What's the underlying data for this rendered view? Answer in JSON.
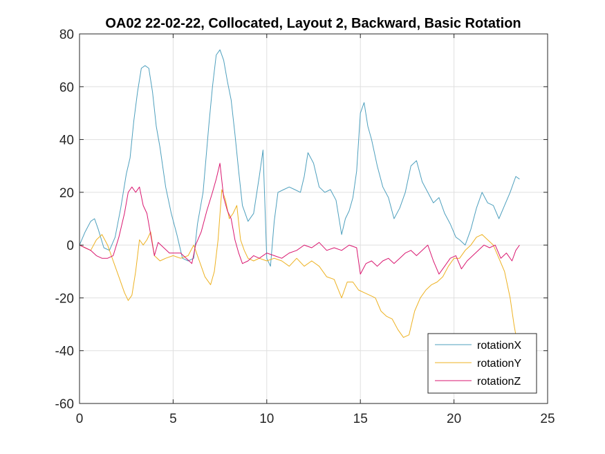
{
  "chart_data": {
    "type": "line",
    "title": "OA02 22-02-22, Collocated, Layout 2, Backward, Basic Rotation",
    "xlabel": "",
    "ylabel": "",
    "xlim": [
      0,
      25
    ],
    "ylim": [
      -60,
      80
    ],
    "xticks": [
      0,
      5,
      10,
      15,
      20,
      25
    ],
    "yticks": [
      -60,
      -40,
      -20,
      0,
      20,
      40,
      60,
      80
    ],
    "x_tick_labels": [
      "0",
      "5",
      "10",
      "15",
      "20",
      "25"
    ],
    "y_tick_labels": [
      "-60",
      "-40",
      "-20",
      "0",
      "20",
      "40",
      "60",
      "80"
    ],
    "grid": true,
    "legend_position": "bottom-right",
    "series": [
      {
        "name": "rotationX",
        "color": "#4d9fbd",
        "x": [
          0,
          0.3,
          0.6,
          0.8,
          1.0,
          1.3,
          1.6,
          1.9,
          2.2,
          2.5,
          2.7,
          2.9,
          3.1,
          3.3,
          3.5,
          3.7,
          3.9,
          4.1,
          4.3,
          4.6,
          4.9,
          5.2,
          5.5,
          5.8,
          6.1,
          6.3,
          6.6,
          6.9,
          7.1,
          7.3,
          7.5,
          7.7,
          7.9,
          8.1,
          8.3,
          8.5,
          8.7,
          9.0,
          9.3,
          9.6,
          9.8,
          10.0,
          10.2,
          10.4,
          10.6,
          10.9,
          11.2,
          11.5,
          11.8,
          12.0,
          12.2,
          12.5,
          12.8,
          13.1,
          13.4,
          13.7,
          14.0,
          14.2,
          14.4,
          14.6,
          14.8,
          15.0,
          15.2,
          15.4,
          15.6,
          15.9,
          16.2,
          16.5,
          16.8,
          17.1,
          17.4,
          17.7,
          18.0,
          18.3,
          18.6,
          18.9,
          19.2,
          19.5,
          19.8,
          20.1,
          20.3,
          20.6,
          20.9,
          21.2,
          21.5,
          21.8,
          22.1,
          22.4,
          22.7,
          23.0,
          23.3,
          23.5
        ],
        "y": [
          0,
          5,
          9,
          10,
          6,
          -1,
          -2,
          3,
          14,
          27,
          33,
          47,
          58,
          67,
          68,
          67,
          58,
          45,
          37,
          22,
          12,
          4,
          -5,
          -6,
          -5,
          8,
          20,
          45,
          60,
          72,
          74,
          70,
          62,
          55,
          42,
          28,
          15,
          9,
          12,
          26,
          36,
          -5,
          -8,
          9,
          20,
          21,
          22,
          21,
          20,
          26,
          35,
          31,
          22,
          20,
          21,
          17,
          4,
          10,
          13,
          18,
          28,
          50,
          54,
          45,
          40,
          30,
          22,
          18,
          10,
          14,
          20,
          30,
          32,
          24,
          20,
          16,
          18,
          12,
          8,
          3,
          2,
          0,
          6,
          14,
          20,
          16,
          15,
          10,
          15,
          20,
          26,
          25
        ]
      },
      {
        "name": "rotationY",
        "color": "#edb120",
        "x": [
          0,
          0.3,
          0.6,
          0.9,
          1.2,
          1.5,
          1.8,
          2.1,
          2.4,
          2.6,
          2.8,
          3.0,
          3.2,
          3.4,
          3.6,
          3.8,
          4.0,
          4.3,
          4.6,
          5.0,
          5.4,
          5.8,
          6.1,
          6.4,
          6.7,
          7.0,
          7.2,
          7.4,
          7.6,
          7.8,
          8.0,
          8.2,
          8.4,
          8.6,
          8.8,
          9.0,
          9.3,
          9.6,
          10.0,
          10.4,
          10.8,
          11.2,
          11.6,
          12.0,
          12.4,
          12.8,
          13.2,
          13.6,
          14.0,
          14.3,
          14.6,
          14.9,
          15.2,
          15.5,
          15.8,
          16.1,
          16.4,
          16.7,
          17.0,
          17.3,
          17.6,
          17.9,
          18.2,
          18.5,
          18.8,
          19.1,
          19.4,
          19.7,
          20.0,
          20.3,
          20.6,
          20.9,
          21.2,
          21.5,
          21.8,
          22.1,
          22.4,
          22.7,
          23.0,
          23.2,
          23.4
        ],
        "y": [
          0,
          -1,
          -2,
          2,
          4,
          0,
          -6,
          -12,
          -18,
          -21,
          -19,
          -10,
          2,
          0,
          2,
          5,
          -4,
          -6,
          -5,
          -4,
          -5,
          -4,
          0,
          -6,
          -12,
          -15,
          -10,
          2,
          21,
          17,
          10,
          12,
          15,
          2,
          -2,
          -5,
          -6,
          -5,
          -6,
          -5,
          -6,
          -8,
          -5,
          -8,
          -6,
          -8,
          -12,
          -13,
          -20,
          -14,
          -14,
          -17,
          -18,
          -19,
          -20,
          -25,
          -27,
          -28,
          -32,
          -35,
          -34,
          -25,
          -20,
          -17,
          -15,
          -14,
          -12,
          -8,
          -5,
          -5,
          -2,
          0,
          3,
          4,
          2,
          0,
          -5,
          -10,
          -20,
          -30,
          -38
        ]
      },
      {
        "name": "rotationZ",
        "color": "#d9166f",
        "x": [
          0,
          0.3,
          0.6,
          0.9,
          1.2,
          1.5,
          1.8,
          2.1,
          2.4,
          2.6,
          2.8,
          3.0,
          3.2,
          3.4,
          3.6,
          3.8,
          4.0,
          4.2,
          4.5,
          4.8,
          5.1,
          5.4,
          5.7,
          6.0,
          6.2,
          6.5,
          6.8,
          7.1,
          7.3,
          7.5,
          7.7,
          7.9,
          8.1,
          8.3,
          8.5,
          8.7,
          9.0,
          9.3,
          9.6,
          10.0,
          10.4,
          10.8,
          11.2,
          11.6,
          12.0,
          12.4,
          12.8,
          13.2,
          13.6,
          14.0,
          14.4,
          14.8,
          15.0,
          15.3,
          15.6,
          15.9,
          16.2,
          16.5,
          16.8,
          17.1,
          17.4,
          17.7,
          18.0,
          18.3,
          18.6,
          18.9,
          19.2,
          19.5,
          19.8,
          20.1,
          20.4,
          20.7,
          21.0,
          21.3,
          21.6,
          21.9,
          22.2,
          22.5,
          22.8,
          23.1,
          23.3,
          23.5
        ],
        "y": [
          0,
          -1,
          -2,
          -4,
          -5,
          -5,
          -4,
          3,
          12,
          20,
          22,
          20,
          22,
          15,
          12,
          4,
          -4,
          1,
          -1,
          -3,
          -3,
          -3,
          -5,
          -7,
          0,
          5,
          13,
          20,
          25,
          31,
          18,
          13,
          10,
          2,
          -3,
          -7,
          -6,
          -4,
          -5,
          -3,
          -4,
          -5,
          -3,
          -2,
          0,
          -1,
          1,
          -2,
          -1,
          -2,
          0,
          -1,
          -11,
          -7,
          -6,
          -8,
          -6,
          -5,
          -7,
          -5,
          -3,
          -2,
          -4,
          -2,
          0,
          -6,
          -11,
          -8,
          -5,
          -4,
          -9,
          -6,
          -4,
          -2,
          0,
          -1,
          0,
          -5,
          -3,
          -6,
          -2,
          0
        ]
      }
    ]
  }
}
